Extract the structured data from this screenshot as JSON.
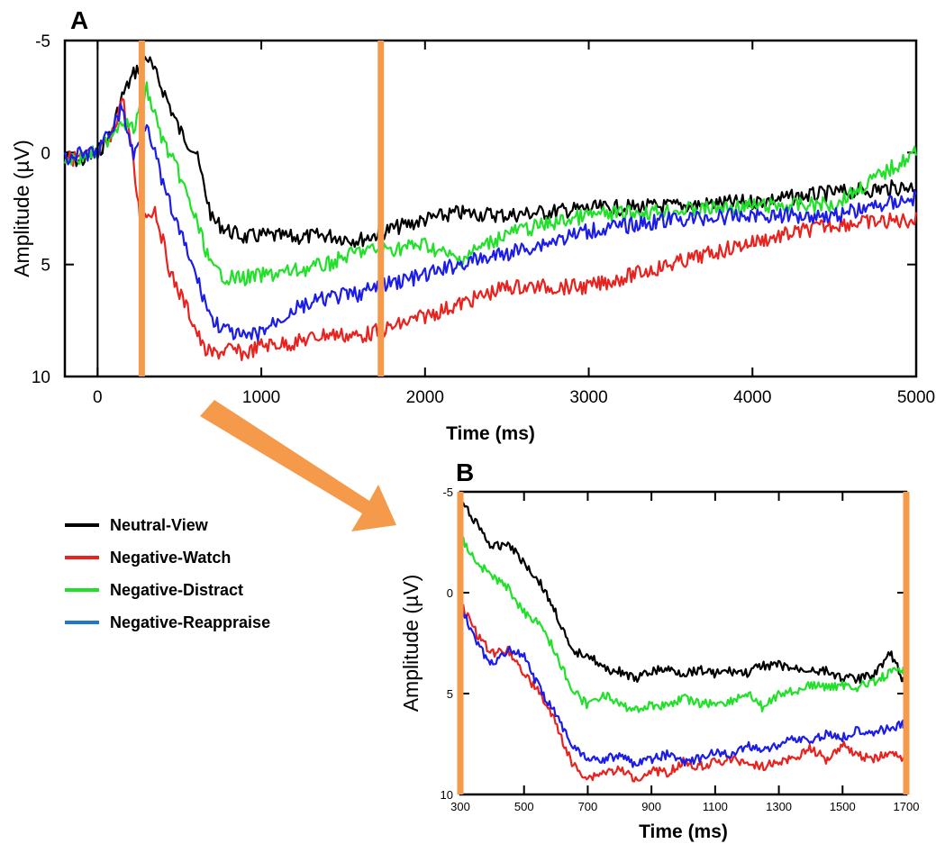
{
  "chart_data": [
    {
      "panel": "A",
      "type": "line",
      "xlabel": "Time (ms)",
      "ylabel": "Amplitude (µV)",
      "xlim": [
        -200,
        5000
      ],
      "ylim": [
        -5,
        10
      ],
      "y_inverted": true,
      "x_ticks": [
        "0",
        "1000",
        "2000",
        "3000",
        "4000",
        "5000"
      ],
      "y_ticks": [
        "-5",
        "0",
        "5",
        "10"
      ],
      "vertical_markers_ms": [
        0,
        270,
        1730
      ],
      "marker_color": "#f59a4a",
      "series": [
        {
          "name": "Neutral-View",
          "color": "#000000",
          "x": [
            -200,
            -100,
            0,
            80,
            150,
            220,
            300,
            400,
            500,
            600,
            700,
            800,
            900,
            1000,
            1200,
            1400,
            1600,
            1800,
            2000,
            2200,
            2500,
            3000,
            3500,
            4000,
            4500,
            5000
          ],
          "y": [
            0.2,
            0.4,
            0.0,
            -0.8,
            -2.5,
            -3.5,
            -4.3,
            -2.8,
            -1.0,
            0.0,
            3.0,
            3.5,
            3.8,
            3.7,
            3.8,
            3.7,
            3.9,
            3.4,
            3.0,
            2.7,
            2.8,
            2.5,
            2.4,
            2.2,
            1.8,
            1.5
          ]
        },
        {
          "name": "Negative-Watch",
          "color": "#e8221e",
          "x": [
            -200,
            -100,
            0,
            80,
            150,
            200,
            260,
            350,
            450,
            550,
            650,
            700,
            800,
            900,
            1000,
            1200,
            1400,
            1600,
            1800,
            2000,
            2200,
            2500,
            3000,
            3500,
            4000,
            4500,
            5000
          ],
          "y": [
            0.3,
            0.2,
            0.0,
            -0.5,
            -2.5,
            -0.5,
            3.0,
            2.5,
            5.5,
            7.0,
            8.8,
            9.0,
            8.8,
            9.0,
            8.6,
            8.5,
            8.1,
            8.2,
            7.8,
            7.3,
            6.8,
            6.0,
            6.0,
            5.0,
            4.0,
            3.2,
            3.0
          ]
        },
        {
          "name": "Negative-Distract",
          "color": "#22e02a",
          "x": [
            -200,
            -100,
            0,
            80,
            150,
            220,
            300,
            400,
            500,
            600,
            700,
            800,
            900,
            1000,
            1200,
            1400,
            1600,
            1800,
            2000,
            2200,
            2500,
            3000,
            3500,
            4000,
            4500,
            5000
          ],
          "y": [
            0.3,
            0.2,
            0.0,
            -0.8,
            -1.5,
            -1.0,
            -2.8,
            -0.5,
            1.0,
            3.0,
            5.2,
            5.6,
            5.6,
            5.5,
            5.3,
            5.0,
            4.4,
            4.3,
            4.1,
            4.8,
            3.6,
            2.8,
            2.6,
            2.4,
            2.3,
            0.0
          ]
        },
        {
          "name": "Negative-Reappraise",
          "color": "#1c1ce8",
          "x": [
            -200,
            -100,
            0,
            80,
            150,
            220,
            300,
            400,
            500,
            600,
            700,
            800,
            900,
            1000,
            1200,
            1400,
            1600,
            1800,
            2000,
            2200,
            2500,
            3000,
            3500,
            4000,
            4500,
            5000
          ],
          "y": [
            0.2,
            0.1,
            0.0,
            -1.0,
            -2.0,
            0.2,
            -1.5,
            1.5,
            3.5,
            5.5,
            7.5,
            8.0,
            8.3,
            8.0,
            7.0,
            6.5,
            6.3,
            5.8,
            5.5,
            5.0,
            4.5,
            3.5,
            3.0,
            2.8,
            2.8,
            2.0
          ]
        }
      ]
    },
    {
      "panel": "B",
      "type": "line",
      "xlabel": "Time (ms)",
      "ylabel": "Amplitude (µV)",
      "xlim": [
        300,
        1700
      ],
      "ylim": [
        -5,
        10
      ],
      "y_inverted": true,
      "x_ticks": [
        "300",
        "500",
        "700",
        "900",
        "1100",
        "1300",
        "1500",
        "1700"
      ],
      "y_ticks": [
        "-5",
        "0",
        "5",
        "10"
      ],
      "series": [
        {
          "name": "Neutral-View",
          "color": "#000000",
          "x": [
            300,
            350,
            400,
            450,
            500,
            550,
            600,
            650,
            700,
            750,
            800,
            850,
            900,
            950,
            1000,
            1050,
            1100,
            1150,
            1200,
            1250,
            1300,
            1350,
            1400,
            1450,
            1500,
            1550,
            1600,
            1650,
            1690
          ],
          "y": [
            -4.5,
            -3.5,
            -2.2,
            -2.5,
            -1.5,
            -0.5,
            1.0,
            3.0,
            3.0,
            3.8,
            3.9,
            4.3,
            3.9,
            3.8,
            4.0,
            3.8,
            4.0,
            3.9,
            4.0,
            3.6,
            3.6,
            3.8,
            3.8,
            3.9,
            4.2,
            4.3,
            4.0,
            3.0,
            4.3
          ]
        },
        {
          "name": "Negative-Watch",
          "color": "#e8221e",
          "x": [
            300,
            350,
            400,
            450,
            500,
            550,
            600,
            650,
            700,
            750,
            800,
            850,
            900,
            950,
            1000,
            1050,
            1100,
            1150,
            1200,
            1250,
            1300,
            1350,
            1400,
            1450,
            1500,
            1550,
            1600,
            1650,
            1690
          ],
          "y": [
            0.5,
            2.0,
            3.0,
            2.8,
            4.0,
            5.0,
            6.5,
            8.5,
            9.2,
            8.9,
            8.8,
            9.2,
            8.8,
            8.9,
            8.4,
            8.6,
            8.4,
            8.3,
            8.4,
            8.6,
            8.4,
            8.2,
            7.7,
            8.3,
            7.5,
            8.1,
            8.2,
            8.0,
            8.2
          ]
        },
        {
          "name": "Negative-Distract",
          "color": "#22e02a",
          "x": [
            300,
            350,
            400,
            450,
            500,
            550,
            600,
            650,
            700,
            750,
            800,
            850,
            900,
            950,
            1000,
            1050,
            1100,
            1150,
            1200,
            1250,
            1300,
            1350,
            1400,
            1450,
            1500,
            1550,
            1600,
            1650,
            1690
          ],
          "y": [
            -2.8,
            -1.5,
            -0.8,
            -0.2,
            1.0,
            1.5,
            3.0,
            4.8,
            5.6,
            5.0,
            5.6,
            5.8,
            5.6,
            5.6,
            5.2,
            5.5,
            5.5,
            5.4,
            5.0,
            5.7,
            5.0,
            4.9,
            4.6,
            4.7,
            4.6,
            4.7,
            4.4,
            4.0,
            3.8
          ]
        },
        {
          "name": "Negative-Reappraise",
          "color": "#1c1ce8",
          "x": [
            300,
            350,
            400,
            450,
            500,
            550,
            600,
            650,
            700,
            750,
            800,
            850,
            900,
            950,
            1000,
            1050,
            1100,
            1150,
            1200,
            1250,
            1300,
            1350,
            1400,
            1450,
            1500,
            1550,
            1600,
            1650,
            1690
          ],
          "y": [
            0.5,
            2.5,
            3.6,
            2.8,
            3.2,
            4.8,
            6.0,
            7.5,
            8.2,
            8.3,
            8.0,
            8.5,
            8.3,
            8.0,
            8.4,
            8.2,
            7.9,
            8.1,
            7.6,
            7.8,
            7.5,
            7.2,
            7.4,
            7.0,
            7.2,
            6.8,
            6.9,
            6.7,
            6.5
          ]
        }
      ]
    }
  ],
  "legend": [
    {
      "label": "Neutral-View",
      "color": "#000000"
    },
    {
      "label": "Negative-Watch",
      "color": "#e8221e"
    },
    {
      "label": "Negative-Distract",
      "color": "#22e02a"
    },
    {
      "label": "Negative-Reappraise",
      "color": "#1f77c8"
    }
  ],
  "arrow_color": "#f59a4a"
}
